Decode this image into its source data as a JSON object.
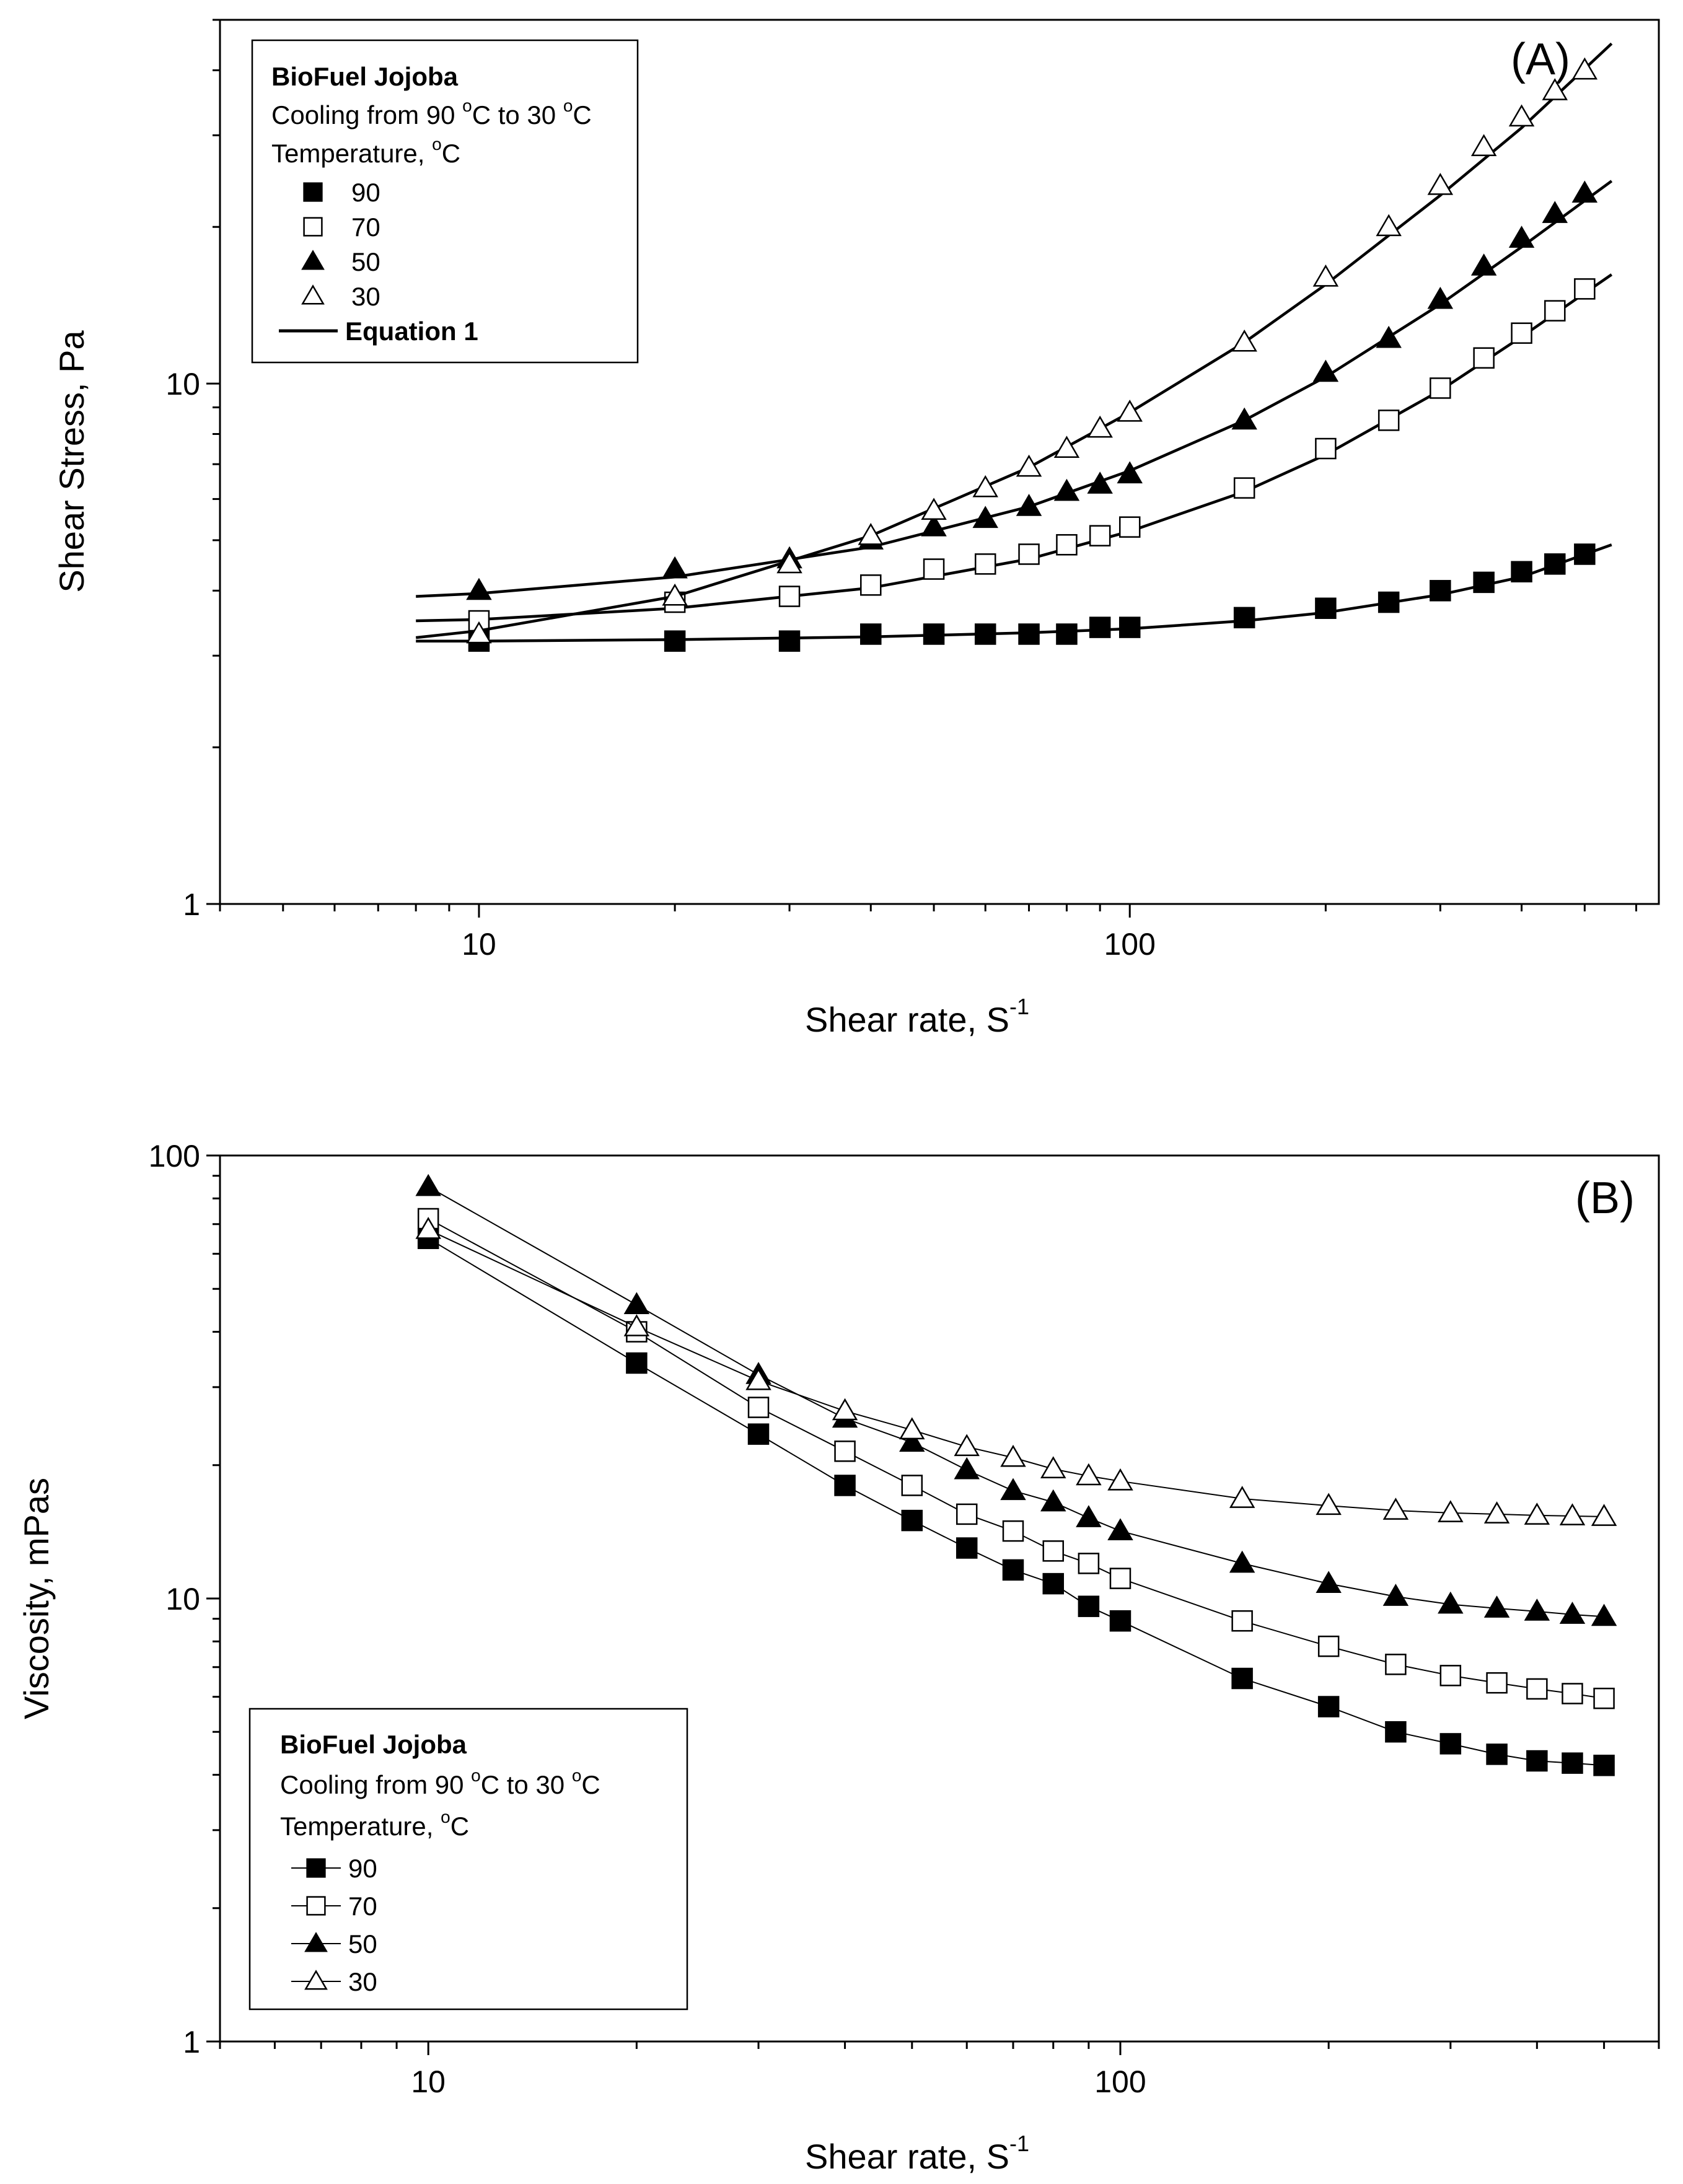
{
  "chart_data": [
    {
      "type": "scatter",
      "panel_label": "(A)",
      "xlabel": "Shear rate, S",
      "xlabel_sup": "-1",
      "ylabel": "Shear Stress, Pa",
      "xscale": "log",
      "yscale": "log",
      "xlim": [
        4,
        650
      ],
      "ylim": [
        1,
        50
      ],
      "x_ticks": [
        10,
        100
      ],
      "y_ticks": [
        1,
        10
      ],
      "grid": false,
      "legend": {
        "position": "top-left",
        "title": "BioFuel Jojoba",
        "subtitle": "Cooling from 90 °C to 30 °C",
        "subtitle_parts": [
          "Cooling from 90 ",
          "o",
          "C to 30 ",
          "o",
          "C"
        ],
        "header": "Temperature, °C",
        "header_parts": [
          "Temperature, ",
          "o",
          "C"
        ],
        "fit_label": "Equation 1"
      },
      "series": [
        {
          "name": "90",
          "marker": "square-filled",
          "x": [
            10,
            20,
            30,
            40,
            50,
            60,
            70,
            80,
            90,
            100,
            150,
            200,
            250,
            300,
            350,
            400,
            450,
            500
          ],
          "y": [
            3.2,
            3.2,
            3.2,
            3.3,
            3.3,
            3.3,
            3.3,
            3.3,
            3.4,
            3.4,
            3.55,
            3.7,
            3.8,
            4.0,
            4.15,
            4.35,
            4.5,
            4.7
          ],
          "fit_x": [
            8,
            10,
            20,
            40,
            70,
            100,
            150,
            200,
            300,
            400,
            550
          ],
          "fit_y": [
            3.2,
            3.2,
            3.22,
            3.26,
            3.32,
            3.38,
            3.5,
            3.63,
            3.93,
            4.25,
            4.9
          ]
        },
        {
          "name": "70",
          "marker": "square-open",
          "x": [
            10,
            20,
            30,
            40,
            50,
            60,
            70,
            80,
            90,
            100,
            150,
            200,
            250,
            300,
            350,
            400,
            450,
            500
          ],
          "y": [
            3.5,
            3.8,
            3.9,
            4.1,
            4.4,
            4.5,
            4.7,
            4.9,
            5.1,
            5.3,
            6.3,
            7.5,
            8.5,
            9.8,
            11.2,
            12.5,
            13.8,
            15.2
          ],
          "fit_x": [
            8,
            10,
            20,
            40,
            70,
            100,
            150,
            200,
            300,
            400,
            550
          ],
          "fit_y": [
            3.5,
            3.52,
            3.7,
            4.05,
            4.6,
            5.2,
            6.2,
            7.3,
            9.7,
            12.3,
            16.2
          ]
        },
        {
          "name": "50",
          "marker": "triangle-filled",
          "x": [
            10,
            20,
            30,
            40,
            50,
            60,
            70,
            80,
            90,
            100,
            150,
            200,
            250,
            300,
            350,
            400,
            450,
            500
          ],
          "y": [
            4.0,
            4.4,
            4.6,
            5.0,
            5.3,
            5.5,
            5.8,
            6.2,
            6.4,
            6.7,
            8.5,
            10.5,
            12.2,
            14.5,
            16.8,
            19.0,
            21.2,
            23.2
          ],
          "fit_x": [
            8,
            10,
            20,
            40,
            70,
            100,
            150,
            200,
            300,
            400,
            550
          ],
          "fit_y": [
            3.9,
            3.95,
            4.25,
            4.85,
            5.8,
            6.8,
            8.5,
            10.3,
            14.2,
            18.3,
            24.5
          ]
        },
        {
          "name": "30",
          "marker": "triangle-open",
          "x": [
            10,
            20,
            30,
            40,
            50,
            60,
            70,
            80,
            90,
            100,
            150,
            200,
            250,
            300,
            350,
            400,
            450,
            500
          ],
          "y": [
            3.3,
            3.9,
            4.5,
            5.1,
            5.7,
            6.3,
            6.9,
            7.5,
            8.2,
            8.8,
            12.0,
            16.0,
            20.0,
            24.0,
            28.5,
            32.5,
            36.5,
            40.0
          ],
          "fit_x": [
            8,
            10,
            20,
            40,
            70,
            100,
            150,
            200,
            300,
            400,
            550
          ],
          "fit_y": [
            3.25,
            3.35,
            3.9,
            5.1,
            6.9,
            8.8,
            12.0,
            15.5,
            23.0,
            31.0,
            45.0
          ]
        }
      ]
    },
    {
      "type": "line",
      "panel_label": "(B)",
      "xlabel": "Shear rate, S",
      "xlabel_sup": "-1",
      "ylabel": "Viscosity, mPas",
      "xscale": "log",
      "yscale": "log",
      "xlim": [
        5,
        600
      ],
      "ylim": [
        1,
        100
      ],
      "x_ticks": [
        10,
        100
      ],
      "y_ticks": [
        1,
        10,
        100
      ],
      "grid": false,
      "legend": {
        "position": "bottom-left",
        "title": "BioFuel Jojoba",
        "subtitle": "Cooling from 90 °C to 30 °C",
        "subtitle_parts": [
          "Cooling from 90 ",
          "o",
          "C to 30 ",
          "o",
          "C"
        ],
        "header": "Temperature, °C",
        "header_parts": [
          "Temperature, ",
          "o",
          "C"
        ]
      },
      "series": [
        {
          "name": "90",
          "marker": "square-filled",
          "x": [
            10,
            20,
            30,
            40,
            50,
            60,
            70,
            80,
            90,
            100,
            150,
            200,
            250,
            300,
            350,
            400,
            450,
            500
          ],
          "y": [
            65,
            34,
            23.5,
            18,
            15,
            13,
            11.6,
            10.8,
            9.6,
            8.9,
            6.6,
            5.7,
            5.0,
            4.7,
            4.45,
            4.3,
            4.25,
            4.2
          ]
        },
        {
          "name": "70",
          "marker": "square-open",
          "x": [
            10,
            20,
            30,
            40,
            50,
            60,
            70,
            80,
            90,
            100,
            150,
            200,
            250,
            300,
            350,
            400,
            450,
            500
          ],
          "y": [
            72,
            40,
            27,
            21.5,
            18,
            15.5,
            14.2,
            12.8,
            12,
            11.1,
            8.9,
            7.8,
            7.1,
            6.7,
            6.45,
            6.25,
            6.1,
            5.95
          ]
        },
        {
          "name": "50",
          "marker": "triangle-filled",
          "x": [
            10,
            20,
            30,
            40,
            50,
            60,
            70,
            80,
            90,
            100,
            150,
            200,
            250,
            300,
            350,
            400,
            450,
            500
          ],
          "y": [
            85,
            46,
            32,
            25.5,
            22.5,
            19.5,
            17.5,
            16.5,
            15.2,
            14.2,
            12.0,
            10.8,
            10.1,
            9.7,
            9.5,
            9.35,
            9.2,
            9.1
          ]
        },
        {
          "name": "30",
          "marker": "triangle-open",
          "x": [
            10,
            20,
            30,
            40,
            50,
            60,
            70,
            80,
            90,
            100,
            150,
            200,
            250,
            300,
            350,
            400,
            450,
            500
          ],
          "y": [
            68,
            41,
            31,
            26.5,
            24,
            22,
            20.8,
            19.6,
            18.9,
            18.4,
            16.8,
            16.2,
            15.8,
            15.6,
            15.5,
            15.4,
            15.35,
            15.3
          ]
        }
      ]
    }
  ]
}
